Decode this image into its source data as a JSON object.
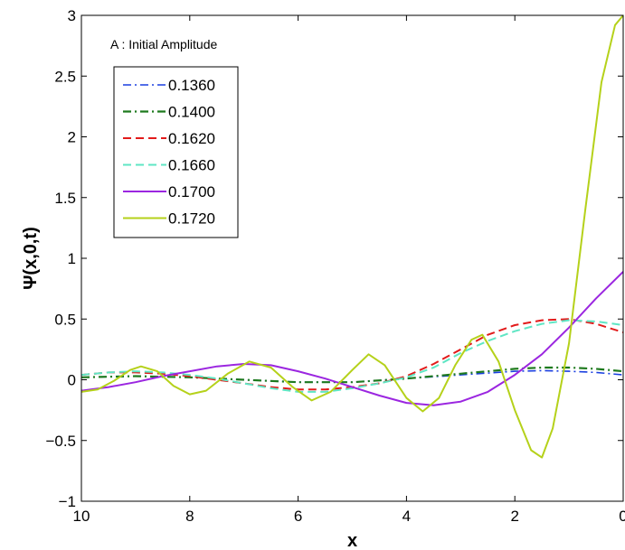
{
  "chart_data": {
    "type": "line",
    "title": "",
    "xlabel": "x",
    "ylabel": "Ψ(x,0,t)",
    "annotation": "A : Initial Amplitude",
    "xlim": [
      10,
      0
    ],
    "x_reversed": true,
    "ylim": [
      -1,
      3
    ],
    "xticks": [
      10,
      8,
      6,
      4,
      2,
      0
    ],
    "xtick_labels": [
      "10",
      "8",
      "6",
      "4",
      "2",
      "0"
    ],
    "yticks": [
      -1,
      -0.5,
      0,
      0.5,
      1,
      1.5,
      2,
      2.5,
      3
    ],
    "ytick_labels": [
      "−1",
      "−0.5",
      "0",
      "0.5",
      "1",
      "1.5",
      "2",
      "2.5",
      "3"
    ],
    "grid": false,
    "legend_position": "top-left",
    "series": [
      {
        "name": "0.1360",
        "color": "#1a3fe0",
        "dash": "dashdot",
        "width": 1.6,
        "points": [
          [
            10,
            0.02
          ],
          [
            9,
            0.03
          ],
          [
            8,
            0.02
          ],
          [
            7,
            0.0
          ],
          [
            6,
            -0.02
          ],
          [
            5,
            -0.02
          ],
          [
            4,
            0.01
          ],
          [
            3,
            0.04
          ],
          [
            2,
            0.07
          ],
          [
            1.5,
            0.075
          ],
          [
            1,
            0.07
          ],
          [
            0.5,
            0.06
          ],
          [
            0,
            0.04
          ]
        ]
      },
      {
        "name": "0.1400",
        "color": "#1e7a1e",
        "dash": "dashdot",
        "width": 2.2,
        "points": [
          [
            10,
            0.02
          ],
          [
            9,
            0.03
          ],
          [
            8,
            0.02
          ],
          [
            7,
            0.0
          ],
          [
            6,
            -0.02
          ],
          [
            5,
            -0.02
          ],
          [
            4,
            0.01
          ],
          [
            3,
            0.05
          ],
          [
            2,
            0.09
          ],
          [
            1.5,
            0.1
          ],
          [
            1,
            0.1
          ],
          [
            0.5,
            0.09
          ],
          [
            0,
            0.07
          ]
        ]
      },
      {
        "name": "0.1620",
        "color": "#e21b1b",
        "dash": "dashed",
        "width": 2,
        "points": [
          [
            10,
            0.04
          ],
          [
            9.5,
            0.06
          ],
          [
            9,
            0.06
          ],
          [
            8.5,
            0.05
          ],
          [
            8,
            0.03
          ],
          [
            7.5,
            0.0
          ],
          [
            7,
            -0.03
          ],
          [
            6.5,
            -0.06
          ],
          [
            6,
            -0.08
          ],
          [
            5.5,
            -0.08
          ],
          [
            5,
            -0.06
          ],
          [
            4.5,
            -0.03
          ],
          [
            4,
            0.03
          ],
          [
            3.5,
            0.13
          ],
          [
            3,
            0.25
          ],
          [
            2.5,
            0.37
          ],
          [
            2,
            0.45
          ],
          [
            1.5,
            0.49
          ],
          [
            1,
            0.5
          ],
          [
            0.5,
            0.46
          ],
          [
            0,
            0.39
          ]
        ]
      },
      {
        "name": "0.1660",
        "color": "#5fe6c4",
        "dash": "dashed",
        "width": 2,
        "points": [
          [
            10,
            0.04
          ],
          [
            9.5,
            0.06
          ],
          [
            9,
            0.07
          ],
          [
            8.5,
            0.06
          ],
          [
            8,
            0.04
          ],
          [
            7.5,
            0.01
          ],
          [
            7,
            -0.03
          ],
          [
            6.5,
            -0.07
          ],
          [
            6,
            -0.1
          ],
          [
            5.5,
            -0.1
          ],
          [
            5,
            -0.07
          ],
          [
            4.5,
            -0.03
          ],
          [
            4,
            0.02
          ],
          [
            3.5,
            0.1
          ],
          [
            3,
            0.22
          ],
          [
            2.5,
            0.32
          ],
          [
            2,
            0.4
          ],
          [
            1.5,
            0.46
          ],
          [
            1,
            0.49
          ],
          [
            0.5,
            0.48
          ],
          [
            0,
            0.45
          ]
        ]
      },
      {
        "name": "0.1700",
        "color": "#9b26e0",
        "dash": "solid",
        "width": 2,
        "points": [
          [
            10,
            -0.09
          ],
          [
            9.5,
            -0.06
          ],
          [
            9,
            -0.02
          ],
          [
            8.5,
            0.03
          ],
          [
            8,
            0.07
          ],
          [
            7.5,
            0.11
          ],
          [
            7,
            0.13
          ],
          [
            6.5,
            0.12
          ],
          [
            6,
            0.07
          ],
          [
            5.5,
            0.01
          ],
          [
            5,
            -0.06
          ],
          [
            4.5,
            -0.13
          ],
          [
            4,
            -0.19
          ],
          [
            3.5,
            -0.21
          ],
          [
            3,
            -0.18
          ],
          [
            2.5,
            -0.1
          ],
          [
            2,
            0.04
          ],
          [
            1.5,
            0.21
          ],
          [
            1,
            0.43
          ],
          [
            0.5,
            0.67
          ],
          [
            0,
            0.89
          ]
        ]
      },
      {
        "name": "0.1720",
        "color": "#b5d11a",
        "dash": "solid",
        "width": 2,
        "points": [
          [
            10,
            -0.1
          ],
          [
            9.7,
            -0.08
          ],
          [
            9.4,
            -0.01
          ],
          [
            9.1,
            0.08
          ],
          [
            8.9,
            0.11
          ],
          [
            8.6,
            0.07
          ],
          [
            8.3,
            -0.05
          ],
          [
            8.0,
            -0.12
          ],
          [
            7.7,
            -0.09
          ],
          [
            7.3,
            0.05
          ],
          [
            6.9,
            0.15
          ],
          [
            6.5,
            0.1
          ],
          [
            6.1,
            -0.06
          ],
          [
            5.75,
            -0.17
          ],
          [
            5.4,
            -0.1
          ],
          [
            5.0,
            0.08
          ],
          [
            4.7,
            0.21
          ],
          [
            4.4,
            0.12
          ],
          [
            4.0,
            -0.15
          ],
          [
            3.7,
            -0.26
          ],
          [
            3.4,
            -0.15
          ],
          [
            3.1,
            0.12
          ],
          [
            2.8,
            0.33
          ],
          [
            2.6,
            0.37
          ],
          [
            2.3,
            0.15
          ],
          [
            2.0,
            -0.25
          ],
          [
            1.7,
            -0.58
          ],
          [
            1.5,
            -0.64
          ],
          [
            1.3,
            -0.4
          ],
          [
            1.0,
            0.3
          ],
          [
            0.7,
            1.4
          ],
          [
            0.4,
            2.45
          ],
          [
            0.15,
            2.92
          ],
          [
            0,
            3.0
          ]
        ]
      }
    ]
  }
}
